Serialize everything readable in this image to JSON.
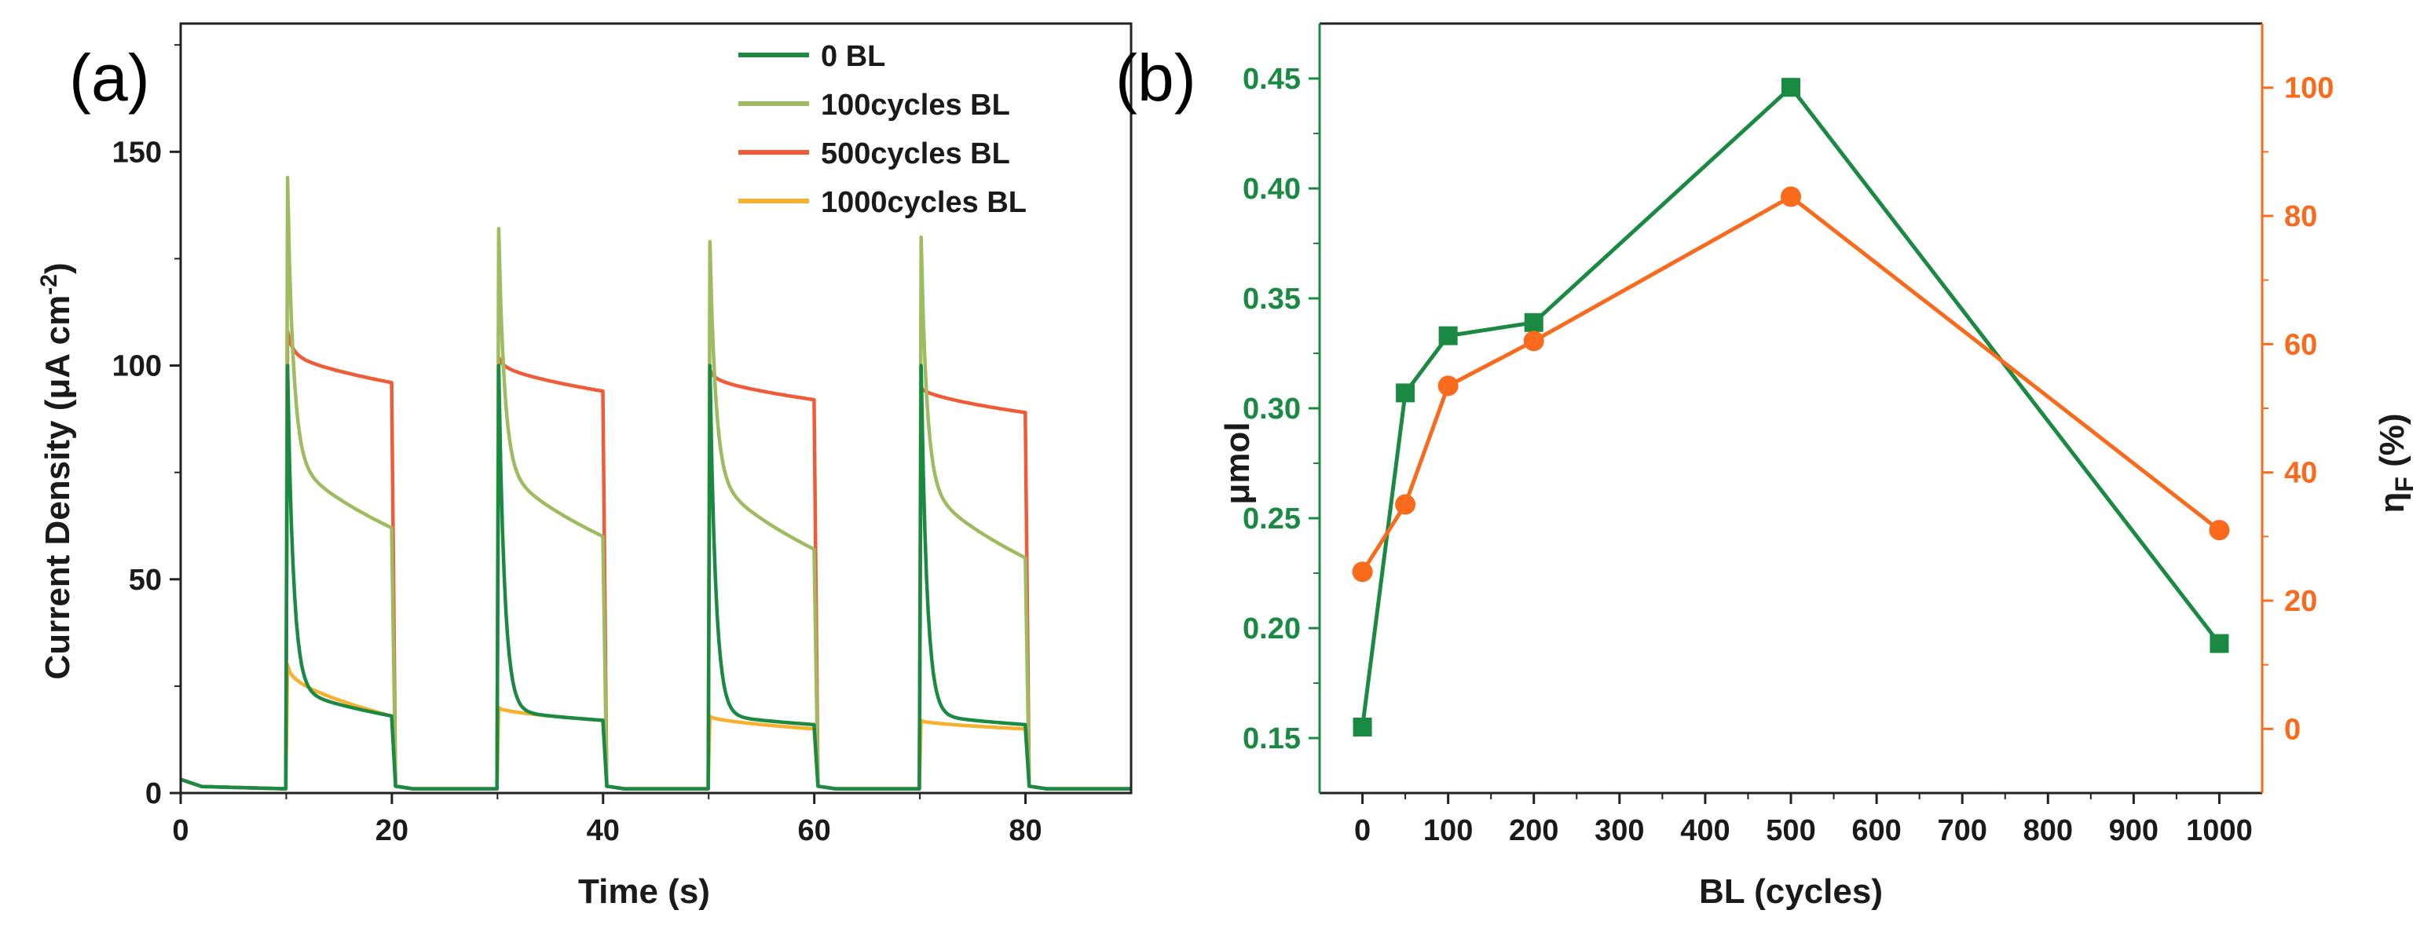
{
  "colors": {
    "s0": "#1a8a43",
    "s100": "#9dbb5f",
    "s500": "#f05a36",
    "s1000": "#f7b02e",
    "b_green": "#1a8a43",
    "b_orange": "#f96a1c",
    "axis": "#222222"
  },
  "chart_data": [
    {
      "id": "a",
      "type": "line",
      "panel_label": "(a)",
      "xlabel": "Time (s)",
      "ylabel_main": "Current Density (μA cm",
      "ylabel_sup": "-2",
      "ylabel_close": ")",
      "xlim": [
        0,
        90
      ],
      "ylim": [
        0,
        180
      ],
      "xticks": [
        0,
        20,
        40,
        60,
        80
      ],
      "yticks": [
        0,
        50,
        100,
        150
      ],
      "legend_position": "top-right",
      "light_on_intervals": [
        [
          10,
          20
        ],
        [
          30,
          40
        ],
        [
          50,
          60
        ],
        [
          70,
          80
        ]
      ],
      "series": [
        {
          "key": "s0",
          "name": "0 BL",
          "dark": 1,
          "pulses": [
            {
              "spike": 100,
              "plateau_start": 26,
              "plateau_end": 18
            },
            {
              "spike": 100,
              "plateau_start": 20,
              "plateau_end": 17
            },
            {
              "spike": 100,
              "plateau_start": 19,
              "plateau_end": 16
            },
            {
              "spike": 100,
              "plateau_start": 19,
              "plateau_end": 16
            }
          ]
        },
        {
          "key": "s100",
          "name": "100cycles BL",
          "dark": 1,
          "pulses": [
            {
              "spike": 144,
              "plateau_start": 82,
              "plateau_end": 62
            },
            {
              "spike": 132,
              "plateau_start": 80,
              "plateau_end": 60
            },
            {
              "spike": 129,
              "plateau_start": 78,
              "plateau_end": 57
            },
            {
              "spike": 130,
              "plateau_start": 76,
              "plateau_end": 55
            }
          ]
        },
        {
          "key": "s500",
          "name": "500cycles BL",
          "dark": 1,
          "pulses": [
            {
              "spike": 108,
              "plateau_start": 104,
              "plateau_end": 96
            },
            {
              "spike": 102,
              "plateau_start": 101,
              "plateau_end": 94
            },
            {
              "spike": 99,
              "plateau_start": 98,
              "plateau_end": 92
            },
            {
              "spike": 95,
              "plateau_start": 95,
              "plateau_end": 89
            }
          ]
        },
        {
          "key": "s1000",
          "name": "1000cycles BL",
          "dark": 1,
          "pulses": [
            {
              "spike": 30,
              "plateau_start": 29,
              "plateau_end": 18
            },
            {
              "spike": 20,
              "plateau_start": 20,
              "plateau_end": 17
            },
            {
              "spike": 18,
              "plateau_start": 18,
              "plateau_end": 15
            },
            {
              "spike": 17,
              "plateau_start": 17,
              "plateau_end": 15
            }
          ]
        }
      ]
    },
    {
      "id": "b",
      "type": "line",
      "panel_label": "(b)",
      "xlabel": "BL (cycles)",
      "xlim": [
        -50,
        1050
      ],
      "xticks": [
        0,
        100,
        200,
        300,
        400,
        500,
        600,
        700,
        800,
        900,
        1000
      ],
      "y_left": {
        "label": "μmol",
        "ylim": [
          0.125,
          0.475
        ],
        "ticks": [
          "0.15",
          "0.20",
          "0.25",
          "0.30",
          "0.35",
          "0.40",
          "0.45"
        ]
      },
      "y_right": {
        "label_main": "η",
        "label_sub": "F",
        "label_tail": " (%)",
        "ylim": [
          -10,
          110
        ],
        "ticks": [
          0,
          20,
          40,
          60,
          80,
          100
        ]
      },
      "series": [
        {
          "name": "μmol",
          "axis": "left",
          "marker": "square",
          "color_key": "b_green",
          "x": [
            0,
            50,
            100,
            200,
            500,
            1000
          ],
          "y": [
            0.155,
            0.307,
            0.333,
            0.339,
            0.446,
            0.193
          ]
        },
        {
          "name": "ηF (%)",
          "axis": "right",
          "marker": "circle",
          "color_key": "b_orange",
          "x": [
            0,
            50,
            100,
            200,
            500,
            1000
          ],
          "y": [
            24.5,
            35,
            53.5,
            60.5,
            83,
            31
          ]
        }
      ]
    }
  ]
}
